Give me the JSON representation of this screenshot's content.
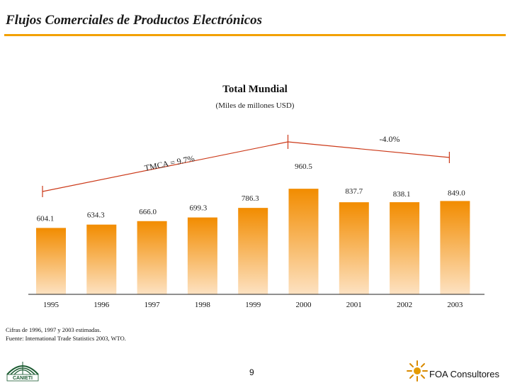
{
  "slide": {
    "title": "Flujos Comerciales de Productos Electrónicos",
    "notes_line1": "Cifras de 1996, 1997 y 2003 estimadas.",
    "notes_line2": "Fuente:  International Trade Statistics 2003, WTO.",
    "page_number": "9",
    "left_logo_text": "CANIETI",
    "right_logo_text": "FOA Consultores",
    "accent_color": "#f2a100",
    "bar_color_top": "#f28c00",
    "bar_color_bottom": "#fde2c2"
  },
  "chart_data": {
    "type": "bar",
    "title": "Total Mundial",
    "subtitle": "(Miles de millones USD)",
    "categories": [
      "1995",
      "1996",
      "1997",
      "1998",
      "1999",
      "2000",
      "2001",
      "2002",
      "2003"
    ],
    "values": [
      604.1,
      634.3,
      666.0,
      699.3,
      786.3,
      960.5,
      837.7,
      838.1,
      849.0
    ],
    "value_labels": [
      "604.1",
      "634.3",
      "666.0",
      "699.3",
      "786.3",
      "960.5",
      "837.7",
      "838.1",
      "849.0"
    ],
    "xlabel": "",
    "ylabel": "",
    "annotations": [
      {
        "text": "TMCA = 9.7%",
        "from": "1995",
        "to": "2000"
      },
      {
        "text": "-4.0%",
        "from": "2000",
        "to": "2003"
      }
    ],
    "grid": false,
    "legend": "none"
  }
}
